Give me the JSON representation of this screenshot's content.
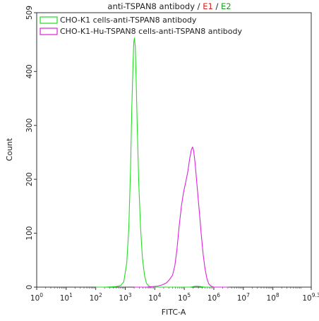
{
  "chart_data": {
    "type": "line",
    "title_parts": [
      {
        "text": "anti-TSPAN8 antibody",
        "color": "#222222"
      },
      {
        "text": " / ",
        "color": "#222222"
      },
      {
        "text": "E1",
        "color": "#d42020"
      },
      {
        "text": " / ",
        "color": "#222222"
      },
      {
        "text": "E2",
        "color": "#1a9a1a"
      }
    ],
    "xlabel": "FITC-A",
    "ylabel": "Count",
    "x_scale": "log10",
    "xlim_exp": [
      0,
      9.3
    ],
    "ylim": [
      0,
      509
    ],
    "x_ticks": [
      {
        "base": "10",
        "exp": "0",
        "value": 0
      },
      {
        "base": "10",
        "exp": "1",
        "value": 1
      },
      {
        "base": "10",
        "exp": "2",
        "value": 2
      },
      {
        "base": "10",
        "exp": "3",
        "value": 3
      },
      {
        "base": "10",
        "exp": "4",
        "value": 4
      },
      {
        "base": "10",
        "exp": "5",
        "value": 5
      },
      {
        "base": "10",
        "exp": "6",
        "value": 6
      },
      {
        "base": "10",
        "exp": "7",
        "value": 7
      },
      {
        "base": "10",
        "exp": "8",
        "value": 8
      },
      {
        "base": "10",
        "exp": "9.3",
        "value": 9.3
      }
    ],
    "y_ticks": [
      {
        "label": "0",
        "value": 0
      },
      {
        "label": "100",
        "value": 100
      },
      {
        "label": "200",
        "value": 200
      },
      {
        "label": "300",
        "value": 300
      },
      {
        "label": "400",
        "value": 400
      },
      {
        "label": "509",
        "value": 509
      }
    ],
    "legend_position": "top-left",
    "series": [
      {
        "name": "CHO-K1 cells-anti-TSPAN8 antibody",
        "color": "#22dd22",
        "points": [
          [
            2.0,
            0
          ],
          [
            2.3,
            0
          ],
          [
            2.7,
            1
          ],
          [
            2.85,
            3
          ],
          [
            2.95,
            10
          ],
          [
            3.05,
            45
          ],
          [
            3.12,
            110
          ],
          [
            3.18,
            220
          ],
          [
            3.22,
            330
          ],
          [
            3.26,
            410
          ],
          [
            3.29,
            455
          ],
          [
            3.31,
            462
          ],
          [
            3.34,
            445
          ],
          [
            3.37,
            380
          ],
          [
            3.41,
            290
          ],
          [
            3.46,
            190
          ],
          [
            3.52,
            110
          ],
          [
            3.58,
            55
          ],
          [
            3.65,
            22
          ],
          [
            3.72,
            7
          ],
          [
            3.8,
            2
          ],
          [
            3.9,
            0
          ],
          [
            4.3,
            0
          ],
          [
            5.2,
            0
          ],
          [
            5.4,
            2
          ],
          [
            5.55,
            1
          ],
          [
            5.7,
            0
          ],
          [
            6.5,
            0
          ]
        ]
      },
      {
        "name": "CHO-K1-Hu-TSPAN8 cells-anti-TSPAN8 antibody",
        "color": "#dd22dd",
        "points": [
          [
            3.3,
            0
          ],
          [
            3.7,
            0
          ],
          [
            3.95,
            1
          ],
          [
            4.1,
            2
          ],
          [
            4.25,
            4
          ],
          [
            4.4,
            8
          ],
          [
            4.5,
            14
          ],
          [
            4.6,
            22
          ],
          [
            4.68,
            40
          ],
          [
            4.75,
            70
          ],
          [
            4.82,
            110
          ],
          [
            4.9,
            150
          ],
          [
            4.97,
            175
          ],
          [
            5.05,
            195
          ],
          [
            5.12,
            215
          ],
          [
            5.18,
            238
          ],
          [
            5.24,
            255
          ],
          [
            5.28,
            260
          ],
          [
            5.32,
            252
          ],
          [
            5.37,
            228
          ],
          [
            5.43,
            190
          ],
          [
            5.5,
            145
          ],
          [
            5.57,
            100
          ],
          [
            5.64,
            60
          ],
          [
            5.7,
            35
          ],
          [
            5.77,
            15
          ],
          [
            5.83,
            6
          ],
          [
            5.9,
            2
          ],
          [
            6.0,
            0
          ],
          [
            6.5,
            0
          ]
        ]
      }
    ]
  }
}
